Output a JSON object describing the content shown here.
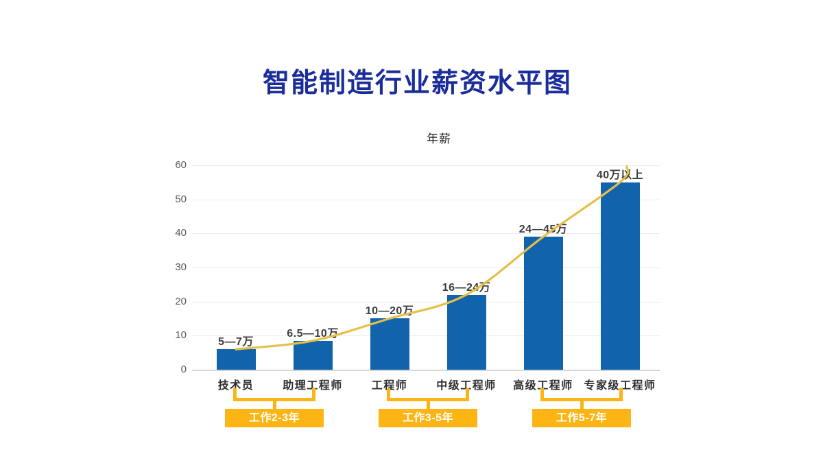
{
  "title": {
    "text": "智能制造行业薪资水平图",
    "color": "#1b2d9b"
  },
  "chart_data": {
    "type": "bar",
    "title": "年薪",
    "categories": [
      "技术员",
      "助理工程师",
      "工程师",
      "中级工程师",
      "高级工程师",
      "专家级工程师"
    ],
    "values": [
      6,
      8.5,
      15,
      22,
      39,
      55
    ],
    "bar_labels": [
      "5—7万",
      "6.5—10万",
      "10—20万",
      "16—24万",
      "24—45万",
      "40万以上"
    ],
    "y_ticks": [
      0,
      10,
      20,
      30,
      40,
      50,
      60
    ],
    "ylim": [
      0,
      62
    ],
    "grid": true,
    "legend": false,
    "bar_color": "#1163ac",
    "curve_color": "#e5bf4a",
    "curve_note": "smooth exponential trend line passing through bar tops",
    "experience_groups": [
      {
        "label": "工作2-3年",
        "from_bar": 0,
        "to_bar": 1
      },
      {
        "label": "工作3-5年",
        "from_bar": 2,
        "to_bar": 3
      },
      {
        "label": "工作5-7年",
        "from_bar": 4,
        "to_bar": 5
      }
    ],
    "group_color": "#fcb515"
  }
}
